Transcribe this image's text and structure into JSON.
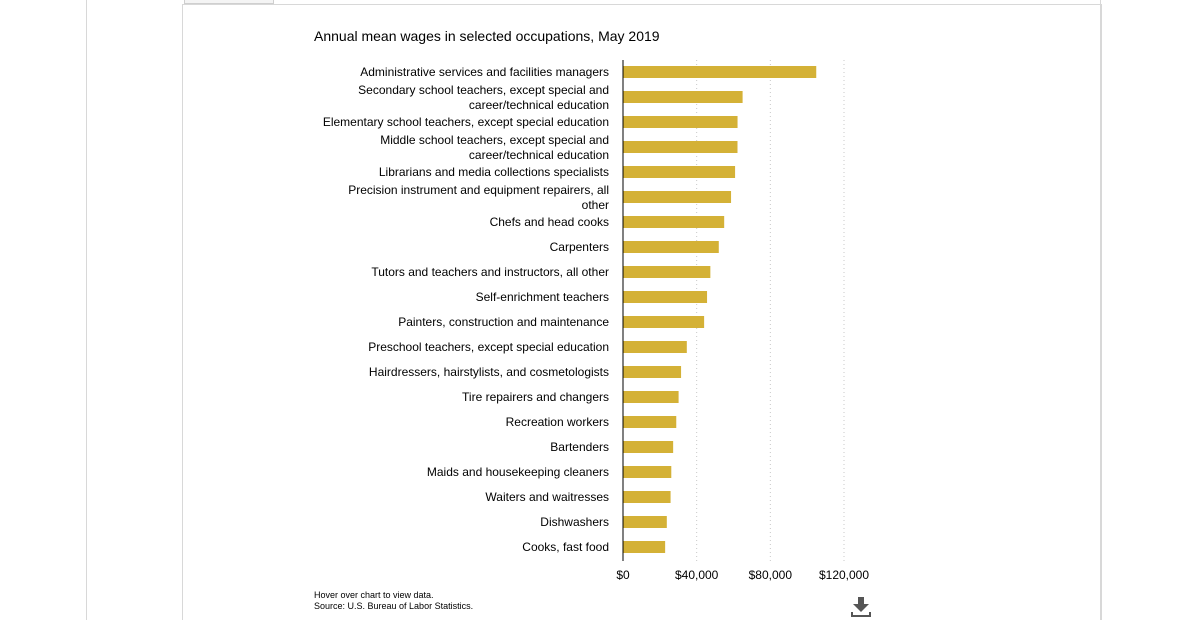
{
  "chart_data": {
    "type": "bar",
    "orientation": "horizontal",
    "title": "Annual mean wages in selected occupations, May 2019",
    "categories": [
      [
        "Administrative services and facilities managers"
      ],
      [
        "Secondary school teachers, except special and",
        "career/technical education"
      ],
      [
        "Elementary school teachers, except special education"
      ],
      [
        "Middle school teachers, except special and",
        "career/technical education"
      ],
      [
        "Librarians and media collections specialists"
      ],
      [
        "Precision instrument and equipment repairers, all",
        "other"
      ],
      [
        "Chefs and head cooks"
      ],
      [
        "Carpenters"
      ],
      [
        "Tutors and teachers and instructors, all other"
      ],
      [
        "Self-enrichment teachers"
      ],
      [
        "Painters, construction and maintenance"
      ],
      [
        "Preschool teachers, except special education"
      ],
      [
        "Hairdressers, hairstylists, and cosmetologists"
      ],
      [
        "Tire repairers and changers"
      ],
      [
        "Recreation workers"
      ],
      [
        "Bartenders"
      ],
      [
        "Maids and housekeeping cleaners"
      ],
      [
        "Waiters and waitresses"
      ],
      [
        "Dishwashers"
      ],
      [
        "Cooks, fast food"
      ]
    ],
    "values": [
      104930,
      64940,
      62200,
      62170,
      60860,
      58670,
      54940,
      52010,
      47430,
      45640,
      44050,
      34650,
      31530,
      30190,
      28920,
      27230,
      26220,
      25830,
      23790,
      22880
    ],
    "xlim": [
      0,
      120000
    ],
    "xticks": [
      0,
      40000,
      80000,
      120000
    ],
    "xtick_labels": [
      "$0",
      "$40,000",
      "$80,000",
      "$120,000"
    ],
    "grid": "vertical dotted",
    "bar_color": "#d4b136"
  },
  "footer": {
    "hover_note": "Hover over chart to view data.",
    "source": "Source: U.S. Bureau of Labor Statistics."
  },
  "toolbar": {
    "download_icon": "download-icon"
  }
}
